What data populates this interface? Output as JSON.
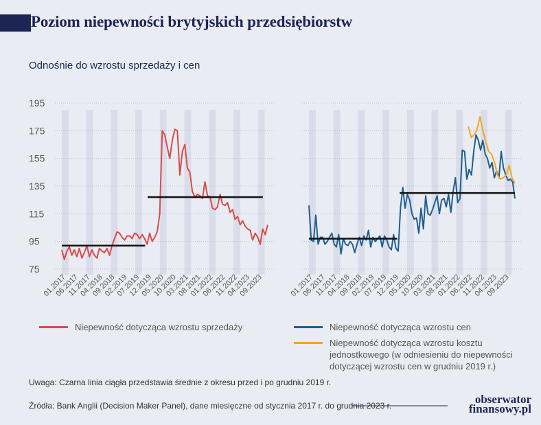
{
  "title": "Poziom niepewności brytyjskich przedsiębiorstw",
  "subtitle": "Odnośnie do wzrostu sprzedaży i cen",
  "colors": {
    "sales": "#d94b4b",
    "prices": "#1f5f8f",
    "unit_cost": "#f1a81c",
    "mean": "#111111",
    "band": "#d9dde9"
  },
  "chart_data": [
    {
      "type": "line",
      "ylim": [
        75,
        195
      ],
      "yticks": [
        "195",
        "175",
        "155",
        "135",
        "115",
        "95",
        "75"
      ],
      "xticks": [
        "01.2017",
        "06.2017",
        "11.2017",
        "04.2018",
        "09.2018",
        "02.2019",
        "07.2019",
        "12.2019",
        "05.2020",
        "10.2020",
        "03.2021",
        "08.2021",
        "01.2022",
        "06.2022",
        "11.2022",
        "04.2023",
        "09.2023"
      ],
      "series": [
        {
          "name": "Niepewność dotycząca wzrostu sprzedaży",
          "start_index": 0,
          "values": [
            89,
            82,
            88,
            91,
            85,
            89,
            84,
            90,
            83,
            87,
            92,
            84,
            89,
            85,
            83,
            90,
            88,
            87,
            90,
            85,
            92,
            97,
            102,
            101,
            98,
            96,
            99,
            99,
            97,
            101,
            100,
            97,
            100,
            97,
            93,
            101,
            95,
            98,
            102,
            115,
            175,
            172,
            163,
            155,
            168,
            176,
            175,
            143,
            160,
            165,
            148,
            145,
            131,
            127,
            129,
            128,
            126,
            138,
            128,
            127,
            119,
            118,
            120,
            129,
            122,
            121,
            123,
            116,
            118,
            111,
            113,
            107,
            110,
            106,
            104,
            103,
            96,
            101,
            98,
            93,
            104,
            100,
            107
          ]
        },
        {
          "name": "średnia",
          "type": "mean",
          "segments": [
            [
              0,
              34,
              92
            ],
            [
              35,
              82,
              127
            ]
          ]
        }
      ]
    },
    {
      "type": "line",
      "ylim": [
        75,
        195
      ],
      "yticks": [
        "195",
        "175",
        "155",
        "135",
        "115",
        "95",
        "75"
      ],
      "xticks": [
        "01.2017",
        "06.2017",
        "11.2017",
        "04.2018",
        "09.2018",
        "02.2019",
        "07.2019",
        "12.2019",
        "05.2020",
        "10.2020",
        "03.2021",
        "08.2021",
        "01.2022",
        "06.2022",
        "11.2022",
        "04.2023",
        "09.2023"
      ],
      "series": [
        {
          "name": "Niepewność dotycząca wzrostu cen",
          "start_index": 0,
          "values": [
            121,
            96,
            95,
            114,
            93,
            98,
            98,
            93,
            95,
            98,
            101,
            93,
            91,
            100,
            86,
            97,
            93,
            92,
            95,
            93,
            87,
            93,
            98,
            92,
            99,
            96,
            103,
            91,
            98,
            95,
            97,
            99,
            91,
            99,
            96,
            91,
            89,
            100,
            90,
            88,
            119,
            134,
            119,
            129,
            125,
            115,
            111,
            112,
            101,
            119,
            104,
            128,
            115,
            114,
            118,
            123,
            128,
            115,
            125,
            126,
            120,
            129,
            116,
            131,
            141,
            123,
            126,
            161,
            160,
            140,
            147,
            143,
            160,
            172,
            168,
            161,
            168,
            158,
            155,
            148,
            152,
            141,
            146,
            141,
            160,
            148,
            143,
            139,
            140,
            138,
            126
          ]
        },
        {
          "name": "Niepewność dotycząca wzrostu kosztu jednostkowego (w odniesieniu do niepewności dotyczącej wzrostu cen w grudniu 2019 r.)",
          "start_index": 65,
          "values": [
            178,
            170,
            172,
            176,
            185,
            175,
            167,
            160,
            158,
            152,
            143,
            140,
            141,
            143,
            150,
            141,
            137
          ]
        },
        {
          "name": "średnia",
          "type": "mean",
          "segments": [
            [
              0,
              36,
              97
            ],
            [
              37,
              84,
              130
            ]
          ]
        }
      ]
    }
  ],
  "legend": {
    "sales": "Niepewność dotycząca wzrostu sprzedaży",
    "prices": "Niepewność dotycząca wzrostu cen",
    "unit_cost_line1": "Niepewność dotycząca wzrostu kosztu",
    "unit_cost_line2": "jednostkowego (w odniesieniu do niepewności",
    "unit_cost_line3": "dotyczącej wzrostu cen w grudniu 2019 r.)"
  },
  "note": "Uwaga: Czarna linia ciągła przedstawia średnie z okresu przed i po grudniu 2019 r.",
  "source": "Źródła: Bank Anglii (Decision Maker Panel), dane miesięczne od stycznia 2017 r. do grudnia 2023 r.",
  "logo": {
    "line1": "obserwator",
    "line2": "finansowy.pl"
  }
}
